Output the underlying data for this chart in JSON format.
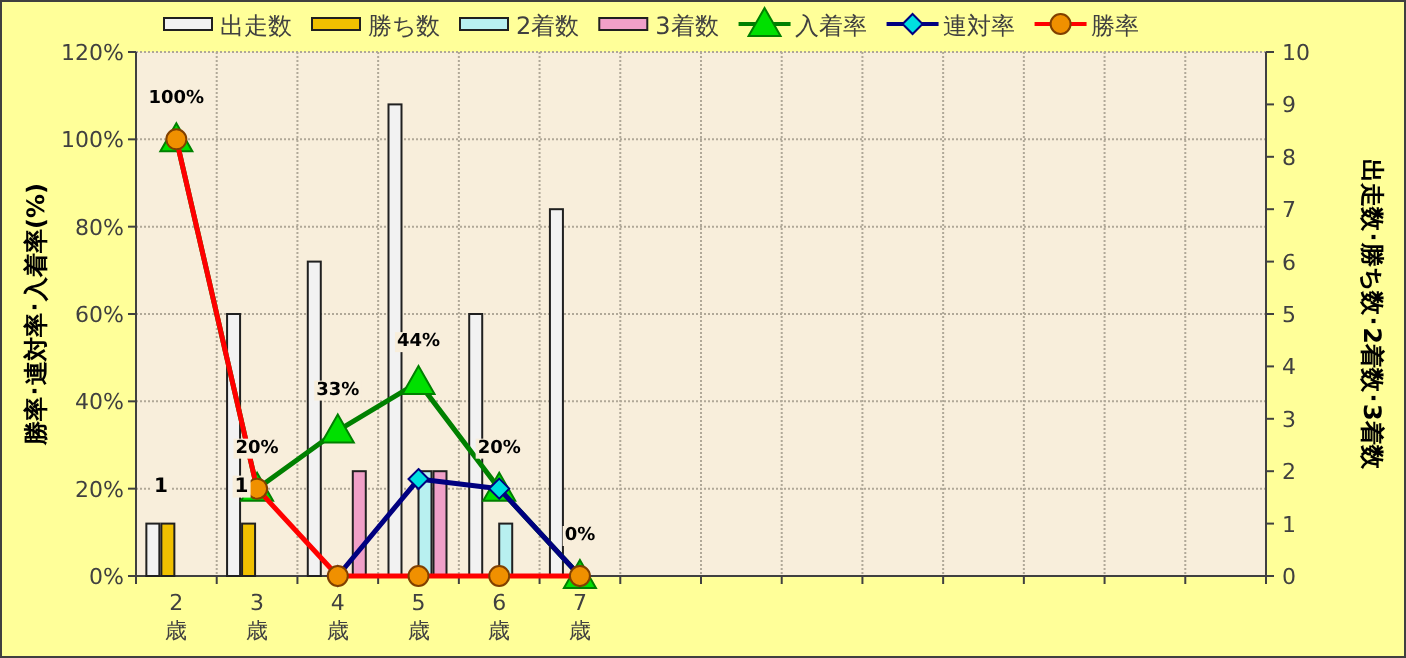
{
  "chart_data": {
    "type": "bar",
    "categories": [
      "2歳",
      "3歳",
      "4歳",
      "5歳",
      "6歳",
      "7歳",
      null,
      null,
      null,
      null,
      null,
      null,
      null,
      null
    ],
    "ylabel": "勝率･連対率･入着率(%)",
    "y2label": "出走数･勝ち数･2着数･3着数",
    "ylim": [
      0,
      120
    ],
    "yticks": [
      {
        "value": 0,
        "label": "0%"
      },
      {
        "value": 20,
        "label": "20%"
      },
      {
        "value": 40,
        "label": "40%"
      },
      {
        "value": 60,
        "label": "60%"
      },
      {
        "value": 80,
        "label": "80%"
      },
      {
        "value": 100,
        "label": "100%"
      },
      {
        "value": 120,
        "label": "120%"
      }
    ],
    "y2lim": [
      0,
      10
    ],
    "y2ticks": [
      0,
      1,
      2,
      3,
      4,
      5,
      6,
      7,
      8,
      9,
      10
    ],
    "grid": true,
    "legend": "top",
    "series": [
      {
        "name": "出走数",
        "axis": "y2",
        "color": "#f2f2f2",
        "values": [
          1,
          5,
          6,
          9,
          5,
          7,
          null,
          null,
          null,
          null,
          null,
          null,
          null,
          null
        ]
      },
      {
        "name": "勝ち数",
        "axis": "y2",
        "color": "#f0c000",
        "values": [
          1,
          1,
          0,
          0,
          0,
          0,
          null,
          null,
          null,
          null,
          null,
          null,
          null,
          null
        ],
        "value_labels": [
          "1",
          "1",
          null,
          null,
          null,
          null,
          null,
          null,
          null,
          null,
          null,
          null,
          null,
          null
        ]
      },
      {
        "name": "2着数",
        "axis": "y2",
        "color": "#b8f0f0",
        "values": [
          0,
          0,
          0,
          2,
          1,
          0,
          null,
          null,
          null,
          null,
          null,
          null,
          null,
          null
        ]
      },
      {
        "name": "3着数",
        "axis": "y2",
        "color": "#f0a0c8",
        "values": [
          0,
          0,
          2,
          2,
          0,
          0,
          null,
          null,
          null,
          null,
          null,
          null,
          null,
          null
        ]
      },
      {
        "name": "入着率",
        "type": "line",
        "color": "#008000",
        "marker": "triangle",
        "values": [
          100,
          20,
          33.3,
          44.4,
          20,
          0,
          null,
          null,
          null,
          null,
          null,
          null,
          null,
          null
        ],
        "value_labels": [
          "100%",
          "20%",
          "33%",
          "44%",
          "20%",
          "0%",
          null,
          null,
          null,
          null,
          null,
          null,
          null,
          null
        ]
      },
      {
        "name": "連対率",
        "type": "line",
        "color": "#000080",
        "marker": "diamond",
        "values": [
          null,
          null,
          0,
          22.2,
          20,
          0,
          null,
          null,
          null,
          null,
          null,
          null,
          null,
          null
        ]
      },
      {
        "name": "勝率",
        "type": "line",
        "color": "#ff0000",
        "marker": "circle",
        "values": [
          100,
          20,
          0,
          0,
          0,
          0,
          null,
          null,
          null,
          null,
          null,
          null,
          null,
          null
        ]
      }
    ]
  }
}
